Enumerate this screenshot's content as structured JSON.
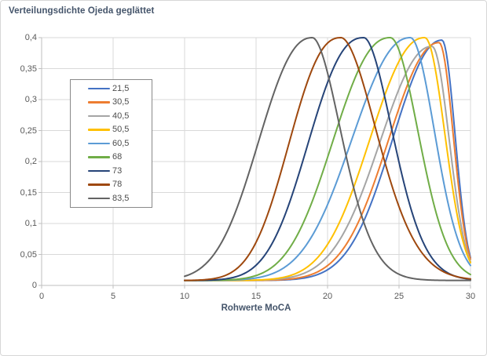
{
  "window": {
    "background": "#ffffff",
    "border_color": "#d7d7d7"
  },
  "chart_data": {
    "type": "line",
    "title": "Verteilungsdichte Ojeda geglättet",
    "xlabel": "Rohwerte MoCA",
    "ylabel": "",
    "xlim": [
      0,
      30
    ],
    "ylim": [
      0,
      0.4
    ],
    "grid": true,
    "legend_position": "inside-upper-left",
    "x_ticks": {
      "values": [
        0,
        5,
        10,
        15,
        20,
        25,
        30
      ],
      "labels": [
        "0",
        "5",
        "10",
        "15",
        "20",
        "25",
        "30"
      ]
    },
    "y_ticks": {
      "values": [
        0,
        0.05,
        0.1,
        0.15,
        0.2,
        0.25,
        0.3,
        0.35,
        0.4
      ],
      "labels": [
        "0",
        "0,05",
        "0,1",
        "0,15",
        "0,2",
        "0,25",
        "0,3",
        "0,35",
        "0,4"
      ]
    },
    "colors": {
      "gridline": "#d9d9d9",
      "axis_line": "#bfbfbf",
      "title_text": "#44546a",
      "tick_text": "#595959",
      "legend_text": "#4d4d4d",
      "legend_border": "#898989"
    },
    "series_note": "smoothed density curves, x from 10 to 30, peak height read off 0.4 gridline; shape params estimated from pixels (asymmetric generalized gaussian + baseline)",
    "series": [
      {
        "label": "21,5",
        "color": "#4472C4",
        "x_start": 10,
        "x_end": 30,
        "baseline": 0.008,
        "peak_x": 28.0,
        "peak_y": 0.396,
        "sigma_left": 3.35,
        "p_left": 2.1,
        "sigma_right": 0.92,
        "p_right": 2.0
      },
      {
        "label": "30,5",
        "color": "#ED7D31",
        "x_start": 10,
        "x_end": 30,
        "baseline": 0.008,
        "peak_x": 27.8,
        "peak_y": 0.392,
        "sigma_left": 3.45,
        "p_left": 2.1,
        "sigma_right": 1.0,
        "p_right": 2.0
      },
      {
        "label": "40,5",
        "color": "#A5A5A5",
        "x_start": 10,
        "x_end": 30,
        "baseline": 0.008,
        "peak_x": 27.3,
        "peak_y": 0.386,
        "sigma_left": 3.55,
        "p_left": 2.1,
        "sigma_right": 1.2,
        "p_right": 2.0
      },
      {
        "label": "50,5",
        "color": "#FFC000",
        "x_start": 10,
        "x_end": 30,
        "baseline": 0.008,
        "peak_x": 26.8,
        "peak_y": 0.4,
        "sigma_left": 3.7,
        "p_left": 2.2,
        "sigma_right": 1.4,
        "p_right": 2.0
      },
      {
        "label": "60,5",
        "color": "#5B9BD5",
        "x_start": 10,
        "x_end": 30,
        "baseline": 0.008,
        "peak_x": 25.8,
        "peak_y": 0.4,
        "sigma_left": 3.95,
        "p_left": 2.2,
        "sigma_right": 1.7,
        "p_right": 1.9
      },
      {
        "label": "68",
        "color": "#70AD47",
        "x_start": 10,
        "x_end": 30,
        "baseline": 0.008,
        "peak_x": 24.4,
        "peak_y": 0.4,
        "sigma_left": 3.85,
        "p_left": 2.3,
        "sigma_right": 1.95,
        "p_right": 1.9
      },
      {
        "label": "73",
        "color": "#264478",
        "x_start": 10,
        "x_end": 30,
        "baseline": 0.008,
        "peak_x": 22.55,
        "peak_y": 0.4,
        "sigma_left": 3.7,
        "p_left": 2.4,
        "sigma_right": 2.0,
        "p_right": 1.8
      },
      {
        "label": "78",
        "color": "#9E480E",
        "x_start": 10,
        "x_end": 30,
        "baseline": 0.008,
        "peak_x": 20.95,
        "peak_y": 0.4,
        "sigma_left": 3.45,
        "p_left": 2.4,
        "sigma_right": 2.5,
        "p_right": 1.8
      },
      {
        "label": "83,5",
        "color": "#636363",
        "x_start": 10,
        "x_end": 30,
        "baseline": 0.008,
        "peak_x": 18.95,
        "peak_y": 0.4,
        "sigma_left": 3.6,
        "p_left": 2.3,
        "sigma_right": 2.0,
        "p_right": 1.8
      }
    ]
  }
}
